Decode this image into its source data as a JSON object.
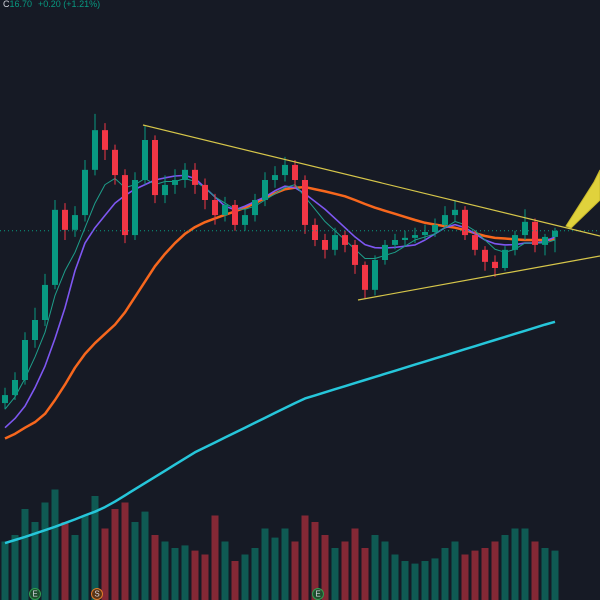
{
  "header": {
    "ohlc_label": "C",
    "close": "16.70",
    "change": "+0.20 (+1.21%)"
  },
  "events": [
    "E",
    "S",
    "E"
  ],
  "chart_data": {
    "type": "candlestick",
    "up_color": "#089981",
    "down_color": "#f23645",
    "ylim": [
      4.7,
      24.2
    ],
    "open": [
      11.1,
      11.36,
      11.85,
      13.15,
      13.8,
      14.94,
      17.38,
      16.73,
      17.21,
      18.68,
      19.97,
      19.33,
      18.51,
      16.56,
      18.35,
      19.65,
      17.86,
      18.19,
      18.35,
      18.68,
      18.19,
      17.7,
      17.21,
      17.54,
      16.89,
      17.21,
      17.7,
      18.35,
      18.51,
      18.84,
      18.35,
      16.89,
      16.4,
      16.08,
      16.56,
      16.24,
      15.59,
      14.78,
      15.75,
      16.24,
      16.4,
      16.47,
      16.56,
      16.66,
      16.89,
      17.21,
      17.38,
      16.56,
      16.08,
      15.69,
      15.49,
      16.08,
      16.56,
      16.99,
      16.24,
      16.5
    ],
    "high": [
      11.6,
      12.1,
      13.4,
      14.2,
      15.3,
      17.7,
      17.6,
      17.5,
      19.0,
      20.5,
      20.2,
      19.5,
      18.7,
      18.6,
      20.1,
      19.8,
      18.5,
      18.7,
      18.9,
      18.9,
      18.4,
      17.9,
      17.8,
      17.7,
      17.4,
      17.9,
      18.6,
      18.8,
      19.1,
      19.0,
      18.5,
      17.1,
      16.6,
      16.8,
      16.7,
      16.4,
      15.7,
      15.9,
      16.4,
      16.6,
      16.7,
      16.8,
      16.9,
      17.1,
      17.5,
      17.7,
      17.5,
      16.7,
      16.2,
      15.9,
      16.2,
      16.7,
      17.4,
      17.1,
      16.6,
      16.8
    ],
    "low": [
      10.9,
      11.2,
      11.7,
      12.9,
      13.6,
      14.8,
      16.4,
      16.5,
      17.0,
      18.5,
      19.0,
      18.2,
      16.3,
      16.4,
      18.2,
      17.6,
      17.6,
      17.9,
      18.1,
      17.9,
      17.4,
      16.9,
      17.0,
      16.7,
      16.7,
      17.0,
      17.5,
      18.1,
      18.3,
      18.1,
      16.6,
      16.2,
      15.8,
      15.9,
      16.0,
      15.3,
      14.5,
      14.6,
      15.6,
      16.1,
      16.2,
      16.3,
      16.4,
      16.5,
      16.8,
      17.0,
      16.4,
      15.9,
      15.4,
      15.2,
      15.4,
      15.9,
      16.4,
      16.0,
      15.9,
      16.0
    ],
    "close": [
      11.36,
      11.85,
      13.15,
      13.8,
      14.94,
      17.38,
      16.73,
      17.21,
      18.68,
      19.97,
      19.33,
      18.51,
      16.56,
      18.35,
      19.65,
      17.86,
      18.19,
      18.35,
      18.68,
      18.19,
      17.7,
      17.21,
      17.54,
      16.89,
      17.21,
      17.7,
      18.35,
      18.51,
      18.84,
      18.35,
      16.89,
      16.4,
      16.08,
      16.56,
      16.24,
      15.59,
      14.78,
      15.75,
      16.24,
      16.4,
      16.47,
      16.56,
      16.66,
      16.89,
      17.21,
      17.38,
      16.56,
      16.08,
      15.69,
      15.49,
      16.08,
      16.56,
      16.99,
      16.24,
      16.5,
      16.7
    ],
    "series": [
      {
        "color": "#26c6da",
        "width": 2.5,
        "values": [
          6.55,
          6.65,
          6.75,
          6.86,
          6.97,
          7.08,
          7.2,
          7.32,
          7.45,
          7.57,
          7.72,
          7.9,
          8.1,
          8.3,
          8.5,
          8.7,
          8.9,
          9.1,
          9.3,
          9.5,
          9.66,
          9.82,
          9.98,
          10.14,
          10.3,
          10.46,
          10.62,
          10.78,
          10.94,
          11.1,
          11.25,
          11.35,
          11.45,
          11.55,
          11.65,
          11.75,
          11.85,
          11.95,
          12.05,
          12.15,
          12.25,
          12.35,
          12.45,
          12.55,
          12.65,
          12.75,
          12.85,
          12.95,
          13.05,
          13.15,
          13.25,
          13.35,
          13.45,
          13.55,
          13.65,
          13.74
        ]
      },
      {
        "color": "#f7671d",
        "width": 2.5,
        "values": [
          9.95,
          10.1,
          10.3,
          10.48,
          10.75,
          11.2,
          11.7,
          12.25,
          12.7,
          13.05,
          13.35,
          13.65,
          14.05,
          14.55,
          15.05,
          15.55,
          15.95,
          16.3,
          16.6,
          16.82,
          16.98,
          17.1,
          17.22,
          17.33,
          17.45,
          17.6,
          17.76,
          17.92,
          18.05,
          18.1,
          18.12,
          18.05,
          17.98,
          17.9,
          17.82,
          17.7,
          17.57,
          17.45,
          17.35,
          17.25,
          17.15,
          17.05,
          16.96,
          16.9,
          16.85,
          16.8,
          16.72,
          16.62,
          16.53,
          16.47,
          16.45,
          16.42,
          16.4,
          16.4,
          16.4,
          16.42
        ]
      },
      {
        "color": "#7e57f2",
        "width": 1.6,
        "values": [
          10.3,
          10.6,
          11.0,
          11.6,
          12.3,
          13.2,
          14.2,
          15.4,
          16.3,
          16.8,
          17.2,
          17.6,
          17.85,
          18.05,
          18.2,
          18.35,
          18.42,
          18.48,
          18.5,
          18.4,
          18.1,
          17.8,
          17.5,
          17.38,
          17.5,
          17.65,
          17.8,
          18.0,
          18.15,
          18.1,
          17.9,
          17.65,
          17.4,
          17.1,
          16.8,
          16.5,
          16.25,
          16.15,
          16.14,
          16.16,
          16.2,
          16.24,
          16.4,
          16.6,
          16.8,
          16.9,
          16.8,
          16.6,
          16.4,
          16.28,
          16.24,
          16.25,
          16.3,
          16.3,
          16.35,
          16.5
        ]
      },
      {
        "color": "#1e9e8a",
        "width": 1,
        "values": [
          10.9,
          11.3,
          11.9,
          12.6,
          13.4,
          14.6,
          15.4,
          16.0,
          16.8,
          17.6,
          18.2,
          18.4,
          18.1,
          18.2,
          18.4,
          18.2,
          18.3,
          18.3,
          18.4,
          18.3,
          18.1,
          17.8,
          17.6,
          17.4,
          17.4,
          17.5,
          17.7,
          17.9,
          18.1,
          18.2,
          17.8,
          17.4,
          17.0,
          16.7,
          16.4,
          16.1,
          15.8,
          15.8,
          15.9,
          16.0,
          16.2,
          16.4,
          16.5,
          16.6,
          16.8,
          17.0,
          16.9,
          16.7,
          16.4,
          16.1,
          16.0,
          16.1,
          16.3,
          16.3,
          16.3,
          16.4
        ]
      }
    ],
    "volume": {
      "ylim": [
        0,
        100
      ],
      "values": [
        45,
        50,
        70,
        60,
        75,
        85,
        60,
        50,
        65,
        80,
        55,
        70,
        75,
        60,
        68,
        50,
        45,
        40,
        42,
        38,
        35,
        65,
        45,
        30,
        35,
        40,
        55,
        48,
        55,
        45,
        65,
        60,
        50,
        40,
        45,
        55,
        40,
        50,
        45,
        35,
        30,
        28,
        30,
        32,
        40,
        45,
        35,
        38,
        40,
        45,
        50,
        55,
        55,
        45,
        40,
        38
      ]
    }
  }
}
